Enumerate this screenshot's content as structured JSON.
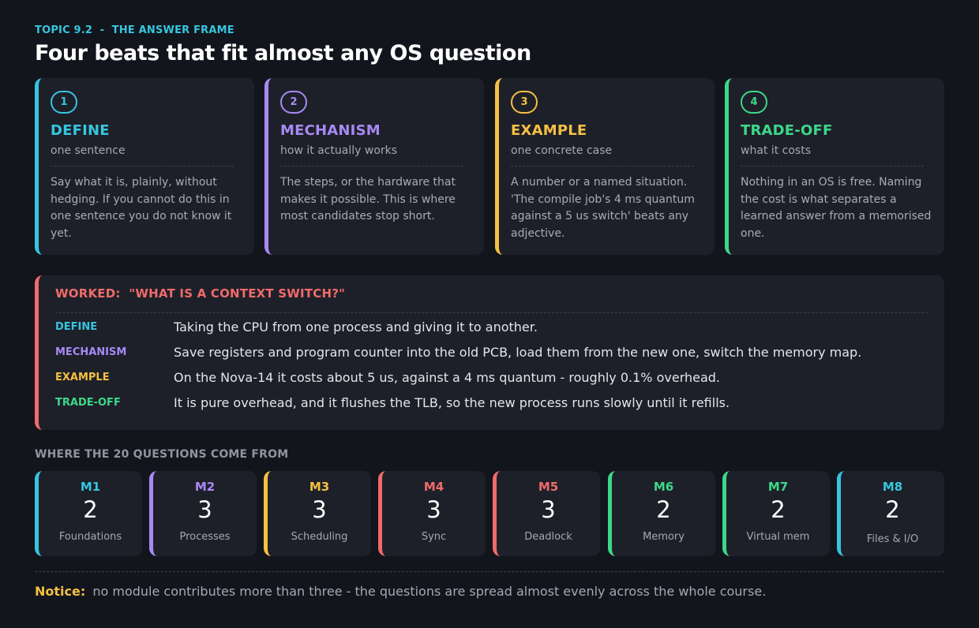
{
  "header": {
    "topic": "TOPIC 9.2  -  THE ANSWER FRAME",
    "title": "Four beats that fit almost any OS question"
  },
  "beats": [
    {
      "number": "1",
      "name": "DEFINE",
      "sub": "one sentence",
      "color": "#35c6e0",
      "body": "Say what it is, plainly, without hedging. If you cannot do this in one sentence you do not know it yet."
    },
    {
      "number": "2",
      "name": "MECHANISM",
      "sub": "how it actually works",
      "color": "#a889f5",
      "body": "The steps, or the hardware that makes it possible. This is where most candidates stop short."
    },
    {
      "number": "3",
      "name": "EXAMPLE",
      "sub": "one concrete case",
      "color": "#f5c042",
      "body": "A number or a named situation. 'The compile job's 4 ms quantum against a 5 us switch' beats any adjective."
    },
    {
      "number": "4",
      "name": "TRADE-OFF",
      "sub": "what it costs",
      "color": "#3cd88a",
      "body": "Nothing in an OS is free. Naming the cost is what separates a learned answer from a memorised one."
    }
  ],
  "worked": {
    "title": "WORKED:  \"WHAT IS A CONTEXT SWITCH?\"",
    "color": "#f06b6b",
    "rows": [
      {
        "label": "DEFINE",
        "color": "#35c6e0",
        "text": "Taking the CPU from one process and giving it to another."
      },
      {
        "label": "MECHANISM",
        "color": "#a889f5",
        "text": "Save registers and program counter into the old PCB, load them from the new one, switch the memory map."
      },
      {
        "label": "EXAMPLE",
        "color": "#f5c042",
        "text": "On the Nova-14 it costs about 5 us, against a 4 ms quantum - roughly 0.1% overhead."
      },
      {
        "label": "TRADE-OFF",
        "color": "#3cd88a",
        "text": "It is pure overhead, and it flushes the TLB, so the new process runs slowly until it refills."
      }
    ]
  },
  "modules": {
    "heading": "WHERE THE 20 QUESTIONS COME FROM",
    "items": [
      {
        "code": "M1",
        "count": "2",
        "name": "Foundations",
        "color": "#35c6e0"
      },
      {
        "code": "M2",
        "count": "3",
        "name": "Processes",
        "color": "#a889f5"
      },
      {
        "code": "M3",
        "count": "3",
        "name": "Scheduling",
        "color": "#f5c042"
      },
      {
        "code": "M4",
        "count": "3",
        "name": "Sync",
        "color": "#f06b6b"
      },
      {
        "code": "M5",
        "count": "3",
        "name": "Deadlock",
        "color": "#f06b6b"
      },
      {
        "code": "M6",
        "count": "2",
        "name": "Memory",
        "color": "#3cd88a"
      },
      {
        "code": "M7",
        "count": "2",
        "name": "Virtual mem",
        "color": "#3cd88a"
      },
      {
        "code": "M8",
        "count": "2",
        "name": "Files & I/O",
        "color": "#35c6e0"
      }
    ]
  },
  "notice": {
    "label": "Notice:",
    "text": "no module contributes more than three - the questions are spread almost evenly across the whole course."
  }
}
